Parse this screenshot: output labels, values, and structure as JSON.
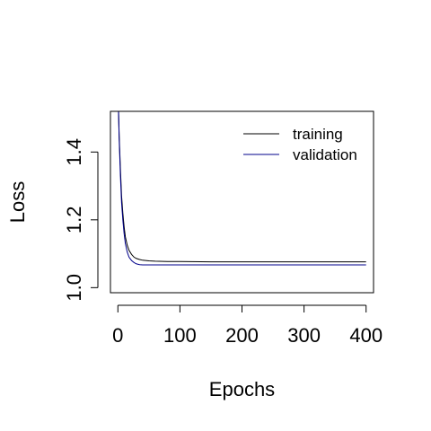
{
  "chart_data": {
    "type": "line",
    "title": "",
    "xlabel": "Epochs",
    "ylabel": "Loss",
    "xlim": [
      -12,
      412
    ],
    "ylim": [
      0.985,
      1.52
    ],
    "x_ticks": [
      0,
      100,
      200,
      300,
      400
    ],
    "x_tick_labels": [
      "0",
      "100",
      "200",
      "300",
      "400"
    ],
    "y_ticks": [
      1.0,
      1.2,
      1.4
    ],
    "y_tick_labels": [
      "1.0",
      "1.2",
      "1.4"
    ],
    "grid": false,
    "legend_position": "top-right",
    "series": [
      {
        "name": "training",
        "color": "#000000",
        "x": [
          0,
          2,
          4,
          6,
          8,
          10,
          12,
          15,
          18,
          22,
          26,
          30,
          35,
          40,
          50,
          60,
          80,
          100,
          150,
          200,
          250,
          300,
          350,
          400
        ],
        "y": [
          1.6,
          1.45,
          1.35,
          1.27,
          1.22,
          1.18,
          1.15,
          1.125,
          1.11,
          1.098,
          1.09,
          1.086,
          1.083,
          1.081,
          1.079,
          1.078,
          1.077,
          1.077,
          1.076,
          1.076,
          1.076,
          1.076,
          1.076,
          1.076
        ]
      },
      {
        "name": "validation",
        "color": "#00008b",
        "x": [
          0,
          2,
          4,
          6,
          8,
          10,
          12,
          15,
          18,
          22,
          26,
          30,
          35,
          40,
          50,
          60,
          80,
          100,
          150,
          200,
          250,
          300,
          350,
          400
        ],
        "y": [
          1.6,
          1.44,
          1.33,
          1.25,
          1.2,
          1.16,
          1.13,
          1.105,
          1.09,
          1.08,
          1.074,
          1.07,
          1.068,
          1.067,
          1.067,
          1.067,
          1.067,
          1.067,
          1.067,
          1.067,
          1.067,
          1.067,
          1.067,
          1.067
        ]
      }
    ]
  }
}
